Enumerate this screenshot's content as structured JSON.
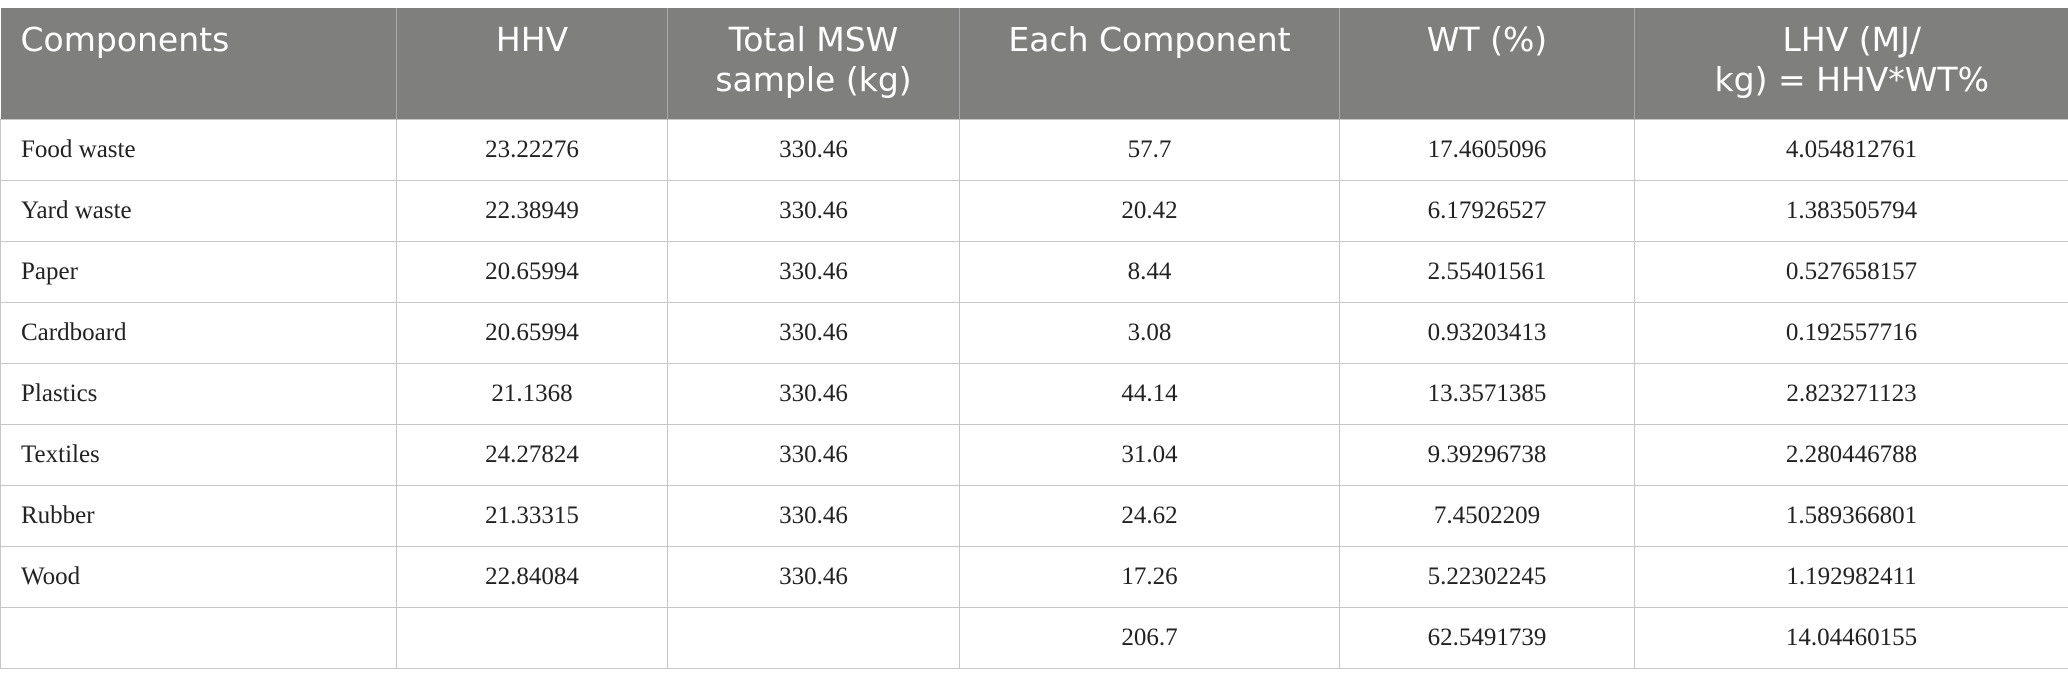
{
  "table": {
    "header": [
      "Components",
      "HHV",
      "Total MSW\nsample (kg)",
      "Each Component",
      "WT (%)",
      "LHV (MJ/\nkg) = HHV*WT%"
    ],
    "rows": [
      [
        "Food waste",
        "23.22276",
        "330.46",
        "57.7",
        "17.4605096",
        "4.054812761"
      ],
      [
        "Yard waste",
        "22.38949",
        "330.46",
        "20.42",
        "6.17926527",
        "1.383505794"
      ],
      [
        "Paper",
        "20.65994",
        "330.46",
        "8.44",
        "2.55401561",
        "0.527658157"
      ],
      [
        "Cardboard",
        "20.65994",
        "330.46",
        "3.08",
        "0.93203413",
        "0.192557716"
      ],
      [
        "Plastics",
        "21.1368",
        "330.46",
        "44.14",
        "13.3571385",
        "2.823271123"
      ],
      [
        "Textiles",
        "24.27824",
        "330.46",
        "31.04",
        "9.39296738",
        "2.280446788"
      ],
      [
        "Rubber",
        "21.33315",
        "330.46",
        "24.62",
        "7.4502209",
        "1.589366801"
      ],
      [
        "Wood",
        "22.84084",
        "330.46",
        "17.26",
        "5.22302245",
        "1.192982411"
      ],
      [
        null,
        null,
        null,
        "206.7",
        "62.5491739",
        "14.04460155"
      ]
    ]
  }
}
